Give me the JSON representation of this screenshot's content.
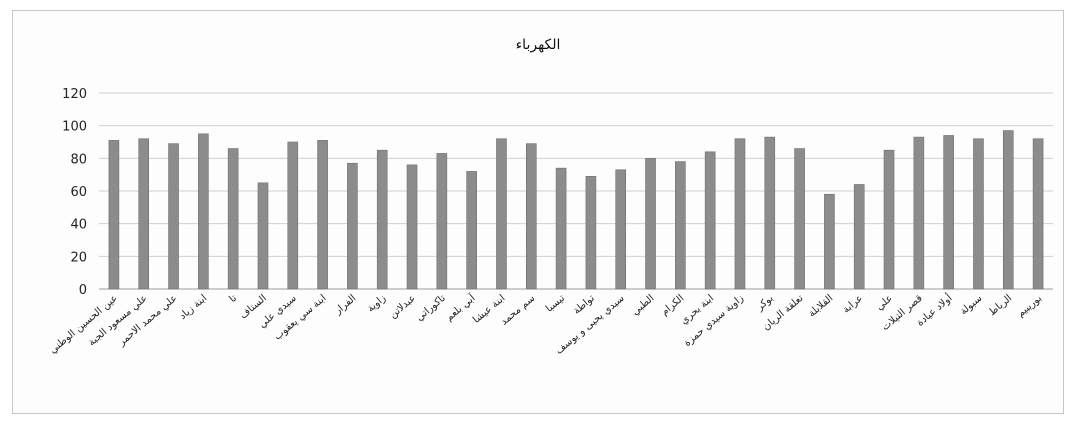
{
  "chart_data": {
    "type": "bar",
    "title": "الكهرباء",
    "xlabel": "",
    "ylabel": "",
    "ylim": [
      0,
      120
    ],
    "yticks": [
      0,
      20,
      40,
      60,
      80,
      100,
      120
    ],
    "grid": true,
    "bar_color": "#8c8c8c",
    "categories": [
      "عين الحسين الوطني",
      "علي مسعود الجبة",
      "علي محمد الاحمر",
      "ابنة زياد",
      "تا",
      "الستاف",
      "سيدي علي",
      "ابنة سي يعقوب",
      "الفرار",
      "زاوية",
      "عبدلاتن",
      "تاكوراتي",
      "آبي بلعم",
      "ابنة عيشا",
      "سم محمد",
      "تيسبا",
      "تواطة",
      "سيدي يحيى و يوسف",
      "الطبي",
      "الكرام",
      "ابنة بحري",
      "زاوية سيدي حمزة",
      "بوكر",
      "تعلقة الريان",
      "القلابلة",
      "عرابة",
      "علي",
      "قصر التيلات",
      "أولاد عيادة",
      "سبولة",
      "الرباط",
      "بوريبيم"
    ],
    "values": [
      91,
      92,
      89,
      95,
      86,
      65,
      90,
      91,
      77,
      85,
      76,
      83,
      72,
      92,
      89,
      74,
      69,
      73,
      80,
      78,
      84,
      92,
      93,
      86,
      58,
      64,
      85,
      93,
      94,
      92,
      97,
      92
    ]
  }
}
